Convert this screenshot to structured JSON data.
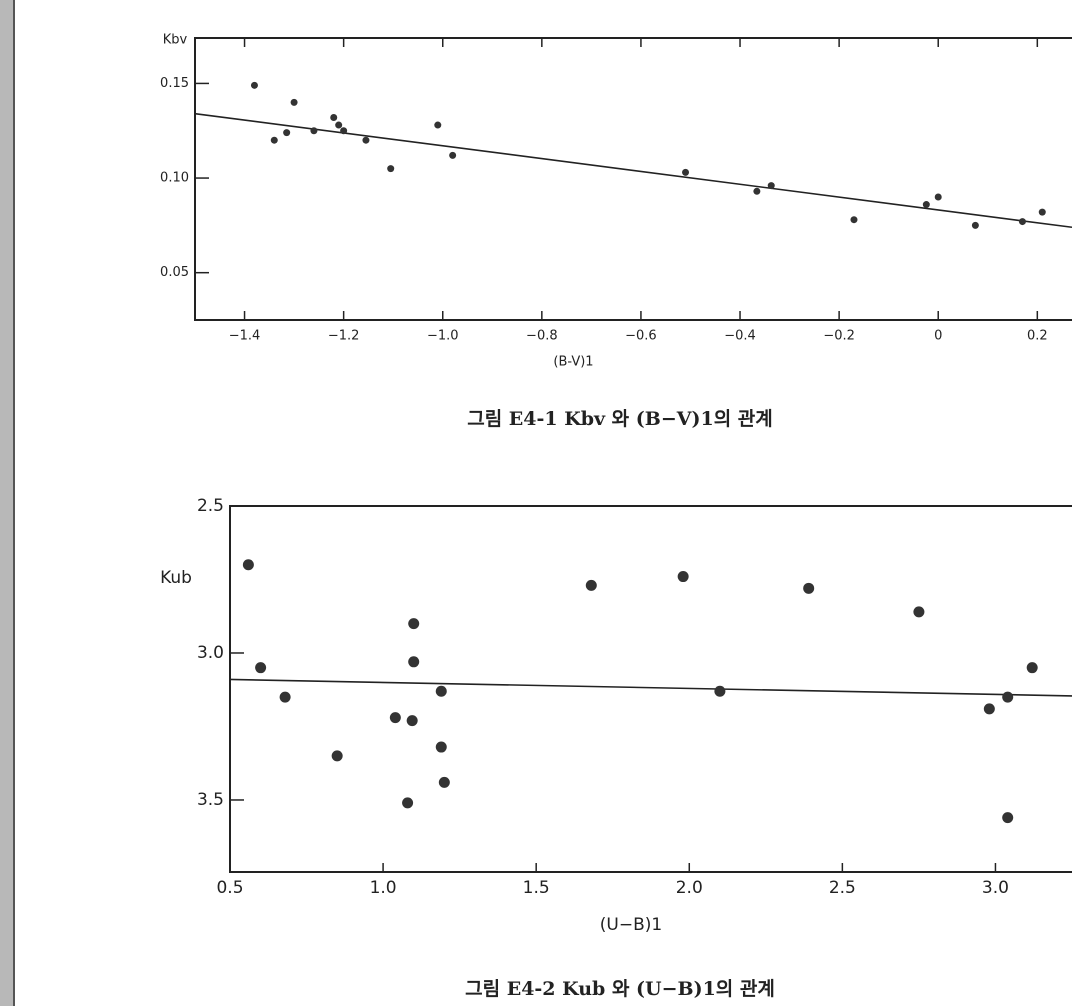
{
  "chart_data": [
    {
      "type": "scatter",
      "ylabel": "Kbv",
      "xlabel": "(B-V)1",
      "caption": "그림 E4-1  Kbv 와 (B−V)1의 관계",
      "xlim": [
        -1.5,
        0.27
      ],
      "ylim": [
        0.025,
        0.174
      ],
      "y_inverted": false,
      "grid": false,
      "color": "#333333",
      "xticks": [
        {
          "value": -1.4,
          "label": "−1.4"
        },
        {
          "value": -1.2,
          "label": "−1.2"
        },
        {
          "value": -1.0,
          "label": "−1.0"
        },
        {
          "value": -0.8,
          "label": "−0.8"
        },
        {
          "value": -0.6,
          "label": "−0.6"
        },
        {
          "value": -0.4,
          "label": "−0.4"
        },
        {
          "value": -0.2,
          "label": "−0.2"
        },
        0,
        0.2
      ],
      "yticks": [
        {
          "value": 0.05,
          "label": "0.05"
        },
        {
          "value": 0.1,
          "label": "0.10"
        },
        {
          "value": 0.15,
          "label": "0.15"
        }
      ],
      "points": {
        "x": [
          -1.38,
          -1.34,
          -1.315,
          -1.3,
          -1.26,
          -1.22,
          -1.21,
          -1.2,
          -1.155,
          -1.105,
          -1.01,
          -0.98,
          -0.51,
          -0.366,
          -0.337,
          -0.17,
          -0.024,
          0,
          0.075,
          0.17,
          0.21
        ],
        "y": [
          0.149,
          0.12,
          0.124,
          0.14,
          0.125,
          0.132,
          0.128,
          0.125,
          0.12,
          0.105,
          0.128,
          0.112,
          0.103,
          0.093,
          0.096,
          0.078,
          0.086,
          0.09,
          0.075,
          0.077,
          0.082
        ]
      },
      "fit": {
        "x": [
          -1.5,
          0.27
        ],
        "y": [
          0.134,
          0.074
        ]
      }
    },
    {
      "type": "scatter",
      "ylabel": "Kub",
      "xlabel": "(U−B)1",
      "caption": "그림 E4-2  Kub 와 (U−B)1의 관계",
      "xlim": [
        0.5,
        3.25
      ],
      "ylim": [
        2.5,
        3.745
      ],
      "y_inverted": true,
      "grid": false,
      "color": "#333333",
      "xticks": [
        0.5,
        {
          "value": 1,
          "label": "1.0"
        },
        1.5,
        {
          "value": 2,
          "label": "2.0"
        },
        2.5,
        {
          "value": 3,
          "label": "3.0"
        }
      ],
      "yticks": [
        2.5,
        {
          "value": 3,
          "label": "3.0"
        },
        3.5
      ],
      "points": {
        "x": [
          0.56,
          0.6,
          0.68,
          0.85,
          1.04,
          1.08,
          1.095,
          1.1,
          1.1,
          1.19,
          1.19,
          1.2,
          1.68,
          1.98,
          2.1,
          2.39,
          2.75,
          2.98,
          3.04,
          3.04,
          3.12
        ],
        "y": [
          2.7,
          3.05,
          3.15,
          3.35,
          3.22,
          3.51,
          3.23,
          2.9,
          3.03,
          3.13,
          3.32,
          3.44,
          2.77,
          2.74,
          3.13,
          2.78,
          2.86,
          3.19,
          3.15,
          3.56,
          3.05
        ]
      },
      "fit": {
        "x": [
          0.5,
          3.25
        ],
        "y": [
          3.09,
          3.146
        ]
      }
    }
  ]
}
